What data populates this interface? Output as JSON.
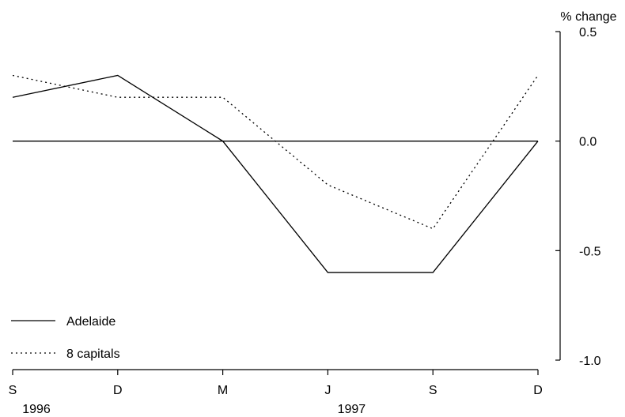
{
  "chart_data": {
    "type": "line",
    "title": "",
    "xlabel": "",
    "ylabel": "% change",
    "x": [
      "S",
      "D",
      "M",
      "J",
      "S",
      "D"
    ],
    "year_labels": [
      {
        "label": "1996",
        "index": 0
      },
      {
        "label": "1997",
        "index": 3
      }
    ],
    "ylim": [
      -1.0,
      0.5
    ],
    "yticks": [
      0.5,
      0.0,
      -0.5,
      -1.0
    ],
    "ytick_labels": [
      "0.5",
      "0.0",
      "-0.5",
      "-1.0"
    ],
    "grid": false,
    "zero_line": true,
    "y_axis_side": "right",
    "legend_position": "bottom-left",
    "series": [
      {
        "name": "Adelaide",
        "style": "solid",
        "color": "#000000",
        "values": [
          0.2,
          0.3,
          0.0,
          -0.6,
          -0.6,
          0.0
        ]
      },
      {
        "name": "8 capitals",
        "style": "dotted",
        "color": "#000000",
        "values": [
          0.3,
          0.2,
          0.2,
          -0.2,
          -0.4,
          0.3
        ]
      }
    ]
  }
}
